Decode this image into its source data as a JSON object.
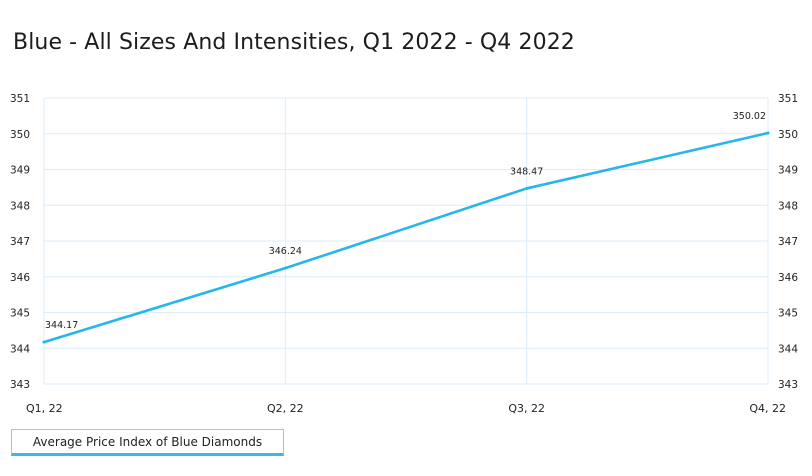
{
  "page": {
    "title": "Blue - All Sizes And Intensities, Q1 2022 - Q4 2022"
  },
  "legend": {
    "label": "Average Price Index of Blue Diamonds"
  },
  "chart_data": {
    "type": "line",
    "title": "Blue - All Sizes And Intensities, Q1 2022 - Q4 2022",
    "xlabel": "",
    "ylabel": "",
    "categories": [
      "Q1, 22",
      "Q2, 22",
      "Q3, 22",
      "Q4, 22"
    ],
    "series": [
      {
        "name": "Average Price Index of Blue Diamonds",
        "values": [
          344.17,
          346.24,
          348.47,
          350.02
        ],
        "color": "#26b6ea"
      }
    ],
    "data_labels": [
      "344.17",
      "346.24",
      "348.47",
      "350.02"
    ],
    "ylim": [
      343,
      351
    ],
    "yticks": [
      343,
      344,
      345,
      346,
      347,
      348,
      349,
      350,
      351
    ],
    "y_axes": "left-and-right",
    "grid": true,
    "grid_color": "#dcecf8",
    "legend_position": "bottom-left"
  }
}
